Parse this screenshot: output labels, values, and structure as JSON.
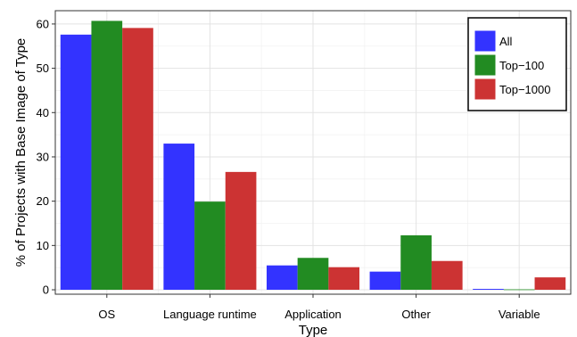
{
  "chart_data": {
    "type": "bar",
    "title": "",
    "xlabel": "Type",
    "ylabel": "% of Projects with Base Image of Type",
    "categories": [
      "OS",
      "Language runtime",
      "Application",
      "Other",
      "Variable"
    ],
    "series": [
      {
        "name": "All",
        "color": "#3333ff",
        "values": [
          57.6,
          33.0,
          5.5,
          4.1,
          0.2
        ]
      },
      {
        "name": "Top−100",
        "color": "#228b22",
        "values": [
          60.7,
          19.9,
          7.2,
          12.3,
          0.1
        ]
      },
      {
        "name": "Top−1000",
        "color": "#cc3333",
        "values": [
          59.1,
          26.6,
          5.1,
          6.5,
          2.8
        ]
      }
    ],
    "y_ticks": [
      0,
      10,
      20,
      30,
      40,
      50,
      60
    ],
    "ylim": [
      -1,
      63
    ],
    "grid": true,
    "legend_position": "top-right"
  }
}
